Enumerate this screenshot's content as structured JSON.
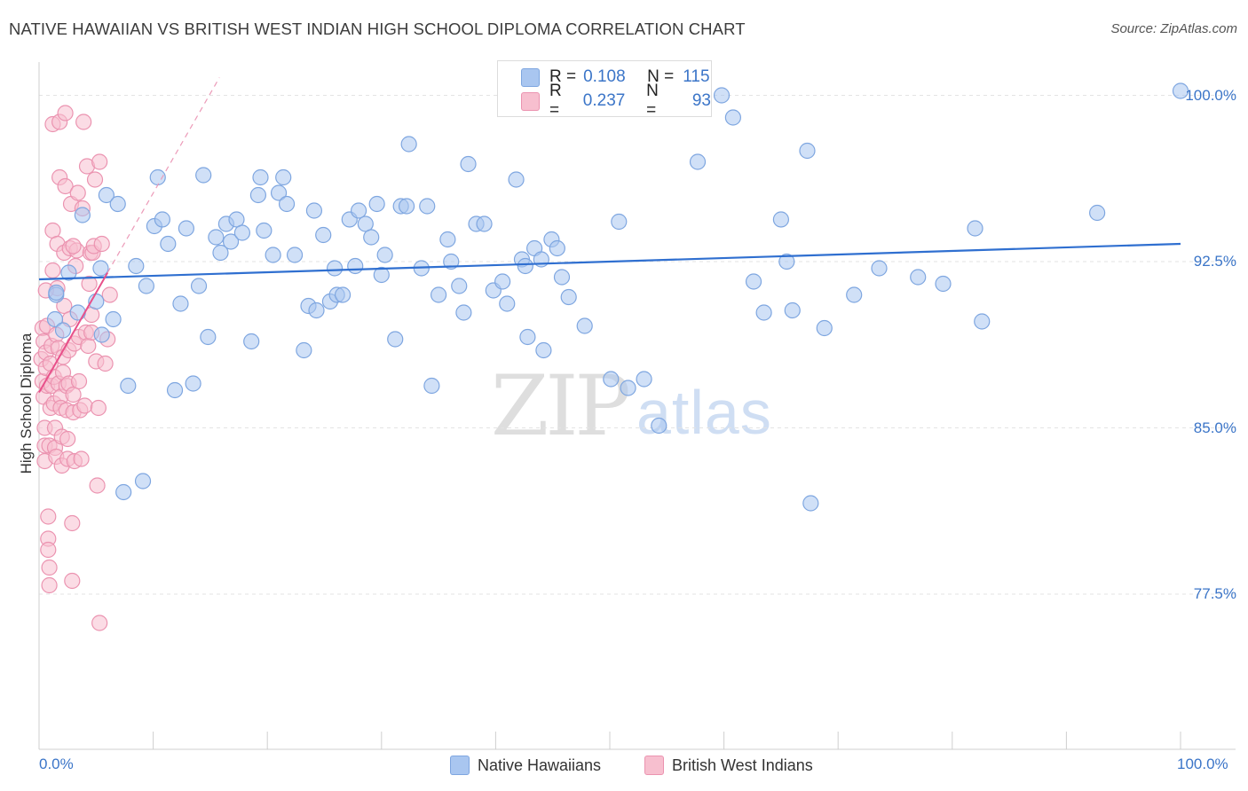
{
  "title": "NATIVE HAWAIIAN VS BRITISH WEST INDIAN HIGH SCHOOL DIPLOMA CORRELATION CHART",
  "source": "Source: ZipAtlas.com",
  "watermark": {
    "zip": "ZIP",
    "atlas": "atlas"
  },
  "stats": {
    "blue": {
      "r_label": "R =",
      "r_value": "0.108",
      "n_label": "N =",
      "n_value": "115"
    },
    "pink": {
      "r_label": "R =",
      "r_value": "0.237",
      "n_label": "N =",
      "n_value": "93"
    }
  },
  "legend": {
    "blue": "Native Hawaiians",
    "pink": "British West Indians"
  },
  "colors": {
    "blue_fill": "#a9c6f0",
    "blue_stroke": "#7ea6e0",
    "blue_line": "#2f6fd0",
    "pink_fill": "#f7bfcf",
    "pink_stroke": "#eb93b0",
    "pink_line": "#e8508a",
    "axis_label": "#3b75c8",
    "grid": "#e3e3e3"
  },
  "chart_data": {
    "type": "scatter",
    "title": "NATIVE HAWAIIAN VS BRITISH WEST INDIAN HIGH SCHOOL DIPLOMA CORRELATION CHART",
    "xlabel": "",
    "ylabel": "High School Diploma",
    "xlim": [
      0,
      100
    ],
    "ylim": [
      70.5,
      101.5
    ],
    "x_tick_labels": [
      "0.0%",
      "100.0%"
    ],
    "y_ticks": [
      77.5,
      85.0,
      92.5,
      100.0
    ],
    "y_tick_labels": [
      "77.5%",
      "85.0%",
      "92.5%",
      "100.0%"
    ],
    "grid": true,
    "series": [
      {
        "name": "Native Hawaiians",
        "r": 0.108,
        "n": 115,
        "trend": {
          "x": [
            0,
            100
          ],
          "y": [
            91.7,
            93.3
          ]
        },
        "points": [
          [
            1.4,
            89.9
          ],
          [
            1.5,
            91.0
          ],
          [
            1.5,
            91.1
          ],
          [
            2.1,
            89.4
          ],
          [
            2.6,
            92.0
          ],
          [
            3.4,
            90.2
          ],
          [
            3.8,
            94.6
          ],
          [
            5.0,
            90.7
          ],
          [
            5.4,
            92.2
          ],
          [
            5.5,
            89.2
          ],
          [
            5.9,
            95.5
          ],
          [
            6.5,
            89.9
          ],
          [
            6.9,
            95.1
          ],
          [
            7.4,
            82.1
          ],
          [
            7.8,
            86.9
          ],
          [
            8.5,
            92.3
          ],
          [
            9.1,
            82.6
          ],
          [
            9.4,
            91.4
          ],
          [
            10.1,
            94.1
          ],
          [
            10.4,
            96.3
          ],
          [
            10.8,
            94.4
          ],
          [
            11.3,
            93.3
          ],
          [
            11.9,
            86.7
          ],
          [
            12.4,
            90.6
          ],
          [
            12.9,
            94.0
          ],
          [
            13.5,
            87.0
          ],
          [
            14.0,
            91.4
          ],
          [
            14.4,
            96.4
          ],
          [
            14.8,
            89.1
          ],
          [
            15.5,
            93.6
          ],
          [
            15.9,
            92.9
          ],
          [
            16.4,
            94.2
          ],
          [
            16.8,
            93.4
          ],
          [
            17.3,
            94.4
          ],
          [
            17.8,
            93.8
          ],
          [
            18.6,
            88.9
          ],
          [
            19.2,
            95.5
          ],
          [
            19.4,
            96.3
          ],
          [
            19.7,
            93.9
          ],
          [
            20.5,
            92.8
          ],
          [
            21.0,
            95.6
          ],
          [
            21.4,
            96.3
          ],
          [
            21.7,
            95.1
          ],
          [
            22.4,
            92.8
          ],
          [
            23.2,
            88.5
          ],
          [
            23.6,
            90.5
          ],
          [
            24.1,
            94.8
          ],
          [
            24.3,
            90.3
          ],
          [
            24.9,
            93.7
          ],
          [
            25.5,
            90.7
          ],
          [
            25.9,
            92.2
          ],
          [
            26.1,
            91.0
          ],
          [
            26.6,
            91.0
          ],
          [
            27.2,
            94.4
          ],
          [
            27.7,
            92.3
          ],
          [
            28.0,
            94.8
          ],
          [
            28.6,
            94.2
          ],
          [
            29.1,
            93.6
          ],
          [
            29.6,
            95.1
          ],
          [
            30.0,
            91.9
          ],
          [
            30.3,
            92.8
          ],
          [
            31.2,
            89.0
          ],
          [
            31.7,
            95.0
          ],
          [
            32.2,
            95.0
          ],
          [
            32.4,
            97.8
          ],
          [
            33.5,
            92.2
          ],
          [
            34.0,
            95.0
          ],
          [
            34.4,
            86.9
          ],
          [
            35.0,
            91.0
          ],
          [
            35.8,
            93.5
          ],
          [
            36.1,
            92.5
          ],
          [
            36.8,
            91.4
          ],
          [
            37.2,
            90.2
          ],
          [
            37.6,
            96.9
          ],
          [
            38.3,
            94.2
          ],
          [
            39.0,
            94.2
          ],
          [
            39.8,
            91.2
          ],
          [
            40.6,
            91.6
          ],
          [
            41.0,
            90.6
          ],
          [
            41.8,
            96.2
          ],
          [
            42.3,
            92.6
          ],
          [
            42.6,
            92.3
          ],
          [
            42.8,
            89.1
          ],
          [
            43.4,
            93.1
          ],
          [
            44.0,
            92.6
          ],
          [
            44.2,
            88.5
          ],
          [
            44.9,
            93.5
          ],
          [
            45.4,
            93.1
          ],
          [
            45.8,
            91.8
          ],
          [
            46.4,
            90.9
          ],
          [
            47.8,
            89.6
          ],
          [
            50.1,
            87.2
          ],
          [
            51.6,
            86.8
          ],
          [
            53.0,
            87.2
          ],
          [
            54.3,
            85.1
          ],
          [
            57.7,
            97.0
          ],
          [
            59.8,
            100.0
          ],
          [
            60.8,
            99.0
          ],
          [
            62.6,
            91.6
          ],
          [
            63.5,
            90.2
          ],
          [
            65.0,
            94.4
          ],
          [
            65.5,
            92.5
          ],
          [
            66.0,
            90.3
          ],
          [
            67.3,
            97.5
          ],
          [
            67.6,
            81.6
          ],
          [
            68.8,
            89.5
          ],
          [
            71.4,
            91.0
          ],
          [
            73.6,
            92.2
          ],
          [
            77.0,
            91.8
          ],
          [
            79.2,
            91.5
          ],
          [
            82.0,
            94.0
          ],
          [
            82.6,
            89.8
          ],
          [
            92.7,
            94.7
          ],
          [
            100.0,
            100.2
          ],
          [
            50.8,
            94.3
          ]
        ]
      },
      {
        "name": "British West Indians",
        "r": 0.237,
        "n": 93,
        "trend": {
          "x": [
            0.0,
            6.0
          ],
          "y": [
            86.6,
            92.0
          ],
          "dashed_extension": {
            "x": [
              6.0,
              15.8
            ],
            "y": [
              92.0,
              100.8
            ]
          }
        },
        "points": [
          [
            0.2,
            88.1
          ],
          [
            0.3,
            89.5
          ],
          [
            0.3,
            87.1
          ],
          [
            0.4,
            88.9
          ],
          [
            0.4,
            86.4
          ],
          [
            0.5,
            85.0
          ],
          [
            0.5,
            83.5
          ],
          [
            0.5,
            84.2
          ],
          [
            0.6,
            88.4
          ],
          [
            0.6,
            87.7
          ],
          [
            0.7,
            86.9
          ],
          [
            0.7,
            89.6
          ],
          [
            0.8,
            81.0
          ],
          [
            0.8,
            80.0
          ],
          [
            0.8,
            79.5
          ],
          [
            0.9,
            78.7
          ],
          [
            0.9,
            77.9
          ],
          [
            0.9,
            84.2
          ],
          [
            1.0,
            85.9
          ],
          [
            1.0,
            87.9
          ],
          [
            1.1,
            88.7
          ],
          [
            1.1,
            86.9
          ],
          [
            1.2,
            92.1
          ],
          [
            1.2,
            93.9
          ],
          [
            1.2,
            98.7
          ],
          [
            1.3,
            87.3
          ],
          [
            1.3,
            86.1
          ],
          [
            1.4,
            85.0
          ],
          [
            1.4,
            84.1
          ],
          [
            1.5,
            83.7
          ],
          [
            1.5,
            89.2
          ],
          [
            1.6,
            91.3
          ],
          [
            1.6,
            93.3
          ],
          [
            1.7,
            88.6
          ],
          [
            1.7,
            87.0
          ],
          [
            1.8,
            96.3
          ],
          [
            1.8,
            98.8
          ],
          [
            1.9,
            86.4
          ],
          [
            1.9,
            85.9
          ],
          [
            2.0,
            84.6
          ],
          [
            2.0,
            83.3
          ],
          [
            2.1,
            88.2
          ],
          [
            2.1,
            87.5
          ],
          [
            2.2,
            90.5
          ],
          [
            2.2,
            92.9
          ],
          [
            2.3,
            95.9
          ],
          [
            2.3,
            99.2
          ],
          [
            2.4,
            86.9
          ],
          [
            2.4,
            85.8
          ],
          [
            2.5,
            84.5
          ],
          [
            2.5,
            83.6
          ],
          [
            2.6,
            88.5
          ],
          [
            2.6,
            87.0
          ],
          [
            2.7,
            89.9
          ],
          [
            2.7,
            93.1
          ],
          [
            2.8,
            95.1
          ],
          [
            2.9,
            78.1
          ],
          [
            2.9,
            80.7
          ],
          [
            3.0,
            86.5
          ],
          [
            3.0,
            85.7
          ],
          [
            3.1,
            83.5
          ],
          [
            3.1,
            88.8
          ],
          [
            3.2,
            92.3
          ],
          [
            3.3,
            93.0
          ],
          [
            3.4,
            95.6
          ],
          [
            3.5,
            89.1
          ],
          [
            3.5,
            87.1
          ],
          [
            3.6,
            85.8
          ],
          [
            3.7,
            83.6
          ],
          [
            3.8,
            94.9
          ],
          [
            3.9,
            98.8
          ],
          [
            4.0,
            86.0
          ],
          [
            4.1,
            89.3
          ],
          [
            4.2,
            96.8
          ],
          [
            4.3,
            88.7
          ],
          [
            4.4,
            91.5
          ],
          [
            4.5,
            92.9
          ],
          [
            4.6,
            90.1
          ],
          [
            4.7,
            92.9
          ],
          [
            4.8,
            93.2
          ],
          [
            5.0,
            88.0
          ],
          [
            5.1,
            82.4
          ],
          [
            5.2,
            85.9
          ],
          [
            5.3,
            97.0
          ],
          [
            5.3,
            76.2
          ],
          [
            5.5,
            93.3
          ],
          [
            5.8,
            87.9
          ],
          [
            6.0,
            89.0
          ],
          [
            6.2,
            91.0
          ],
          [
            4.9,
            96.2
          ],
          [
            0.6,
            91.2
          ],
          [
            3.0,
            93.2
          ],
          [
            4.6,
            89.3
          ]
        ]
      }
    ]
  }
}
